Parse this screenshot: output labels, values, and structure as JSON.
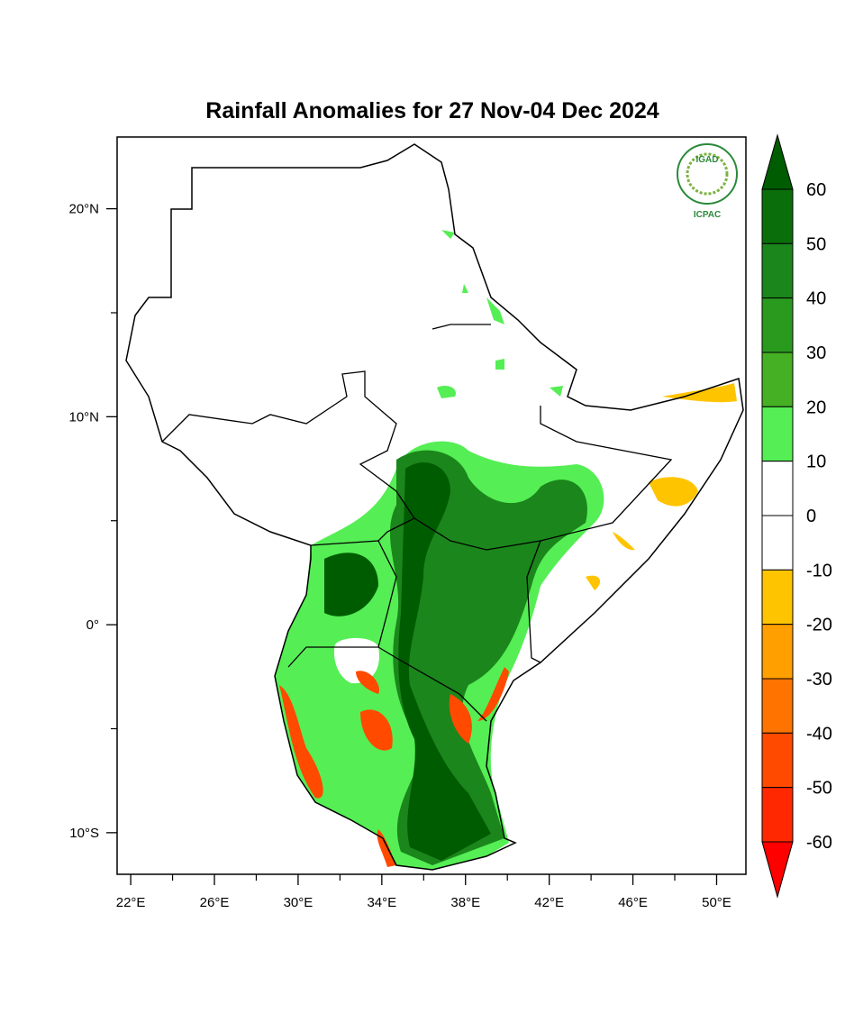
{
  "title": "Rainfall Anomalies for 27 Nov-04 Dec 2024",
  "logo": {
    "top": "IGAD",
    "bottom": "ICPAC"
  },
  "axes": {
    "xlim": [
      21.35,
      51.4
    ],
    "ylim": [
      -12,
      23.45
    ],
    "xticks": [
      {
        "value": 22,
        "label": "22°E"
      },
      {
        "value": 26,
        "label": "26°E"
      },
      {
        "value": 30,
        "label": "30°E"
      },
      {
        "value": 34,
        "label": "34°E"
      },
      {
        "value": 38,
        "label": "38°E"
      },
      {
        "value": 42,
        "label": "42°E"
      },
      {
        "value": 46,
        "label": "46°E"
      },
      {
        "value": 50,
        "label": "50°E"
      }
    ],
    "yticks": [
      {
        "value": 20,
        "label": "20°N"
      },
      {
        "value": 10,
        "label": "10°N"
      },
      {
        "value": 0,
        "label": "0°"
      },
      {
        "value": -10,
        "label": "10°S"
      }
    ]
  },
  "colorbar": {
    "levels": [
      60,
      50,
      40,
      30,
      20,
      10,
      0,
      -10,
      -20,
      -30,
      -40,
      -50,
      -60
    ],
    "colors": [
      "#005c00",
      "#0a6e0a",
      "#1b861b",
      "#2a9a1e",
      "#45b023",
      "#55ee55",
      "#ffffff",
      "#ffffff",
      "#ffc400",
      "#ff9f00",
      "#ff7300",
      "#ff4a00",
      "#ff2800",
      "#ff0000"
    ]
  }
}
